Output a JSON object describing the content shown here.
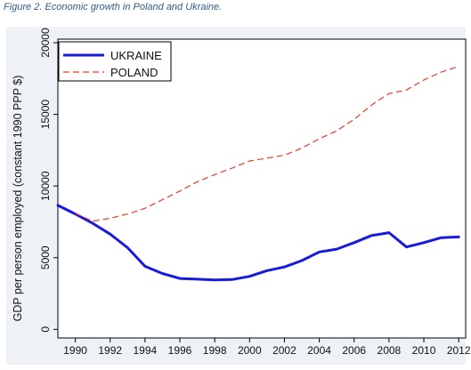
{
  "caption": "Figure 2. Economic growth in Poland and Ukraine.",
  "chart_data": {
    "type": "line",
    "title": "",
    "xlabel": "",
    "ylabel": "GDP per person employed (constant 1990 PPP $)",
    "xlim": [
      1989,
      2012
    ],
    "ylim": [
      0,
      20000
    ],
    "x_ticks": [
      1990,
      1992,
      1994,
      1996,
      1998,
      2000,
      2002,
      2004,
      2006,
      2008,
      2010,
      2012
    ],
    "y_ticks": [
      0,
      5000,
      10000,
      15000,
      20000
    ],
    "grid": false,
    "legend_position": "top-left",
    "series": [
      {
        "name": "UKRAINE",
        "color": "#1a1adc",
        "style": "solid",
        "x": [
          1989,
          1990,
          1991,
          1992,
          1993,
          1994,
          1995,
          1996,
          1997,
          1998,
          1999,
          2000,
          2001,
          2002,
          2003,
          2004,
          2005,
          2006,
          2007,
          2008,
          2009,
          2010,
          2011,
          2012
        ],
        "y": [
          8650,
          8050,
          7400,
          6650,
          5700,
          4400,
          3900,
          3550,
          3500,
          3450,
          3480,
          3700,
          4100,
          4350,
          4800,
          5400,
          5600,
          6050,
          6550,
          6750,
          5750,
          6050,
          6400,
          6450
        ]
      },
      {
        "name": "POLAND",
        "color": "#e83a2a",
        "style": "dashed",
        "x": [
          1990,
          1991,
          1992,
          1993,
          1994,
          1995,
          1996,
          1997,
          1998,
          1999,
          2000,
          2001,
          2002,
          2003,
          2004,
          2005,
          2006,
          2007,
          2008,
          2009,
          2010,
          2011,
          2012
        ],
        "y": [
          8100,
          7550,
          7750,
          8050,
          8450,
          9050,
          9650,
          10300,
          10800,
          11250,
          11750,
          11950,
          12150,
          12650,
          13300,
          13850,
          14650,
          15650,
          16450,
          16700,
          17400,
          17950,
          18350
        ]
      }
    ]
  }
}
